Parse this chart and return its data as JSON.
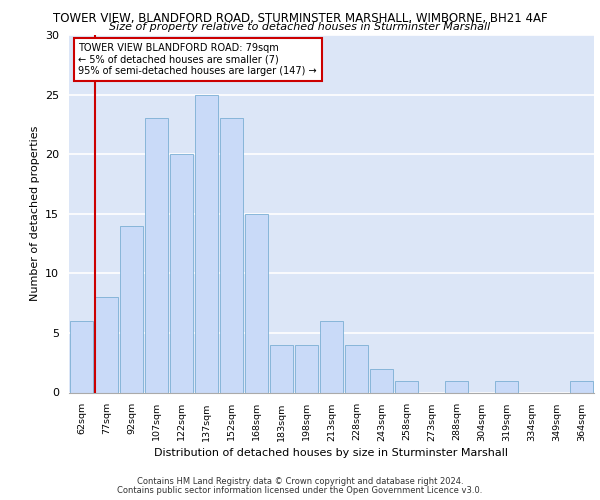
{
  "title1": "TOWER VIEW, BLANDFORD ROAD, STURMINSTER MARSHALL, WIMBORNE, BH21 4AF",
  "title2": "Size of property relative to detached houses in Sturminster Marshall",
  "xlabel": "Distribution of detached houses by size in Sturminster Marshall",
  "ylabel": "Number of detached properties",
  "categories": [
    "62sqm",
    "77sqm",
    "92sqm",
    "107sqm",
    "122sqm",
    "137sqm",
    "152sqm",
    "168sqm",
    "183sqm",
    "198sqm",
    "213sqm",
    "228sqm",
    "243sqm",
    "258sqm",
    "273sqm",
    "288sqm",
    "304sqm",
    "319sqm",
    "334sqm",
    "349sqm",
    "364sqm"
  ],
  "values": [
    6,
    8,
    14,
    23,
    20,
    25,
    23,
    15,
    4,
    4,
    6,
    4,
    2,
    1,
    0,
    1,
    0,
    1,
    0,
    0,
    1
  ],
  "bar_color": "#c9daf8",
  "bar_edge_color": "#7bafd4",
  "annotation_title": "TOWER VIEW BLANDFORD ROAD: 79sqm",
  "annotation_line1": "← 5% of detached houses are smaller (7)",
  "annotation_line2": "95% of semi-detached houses are larger (147) →",
  "vline_color": "#cc0000",
  "box_edge_color": "#cc0000",
  "ylim": [
    0,
    30
  ],
  "yticks": [
    0,
    5,
    10,
    15,
    20,
    25,
    30
  ],
  "footer1": "Contains HM Land Registry data © Crown copyright and database right 2024.",
  "footer2": "Contains public sector information licensed under the Open Government Licence v3.0.",
  "bg_color": "#dce6f7",
  "grid_color": "#ffffff"
}
